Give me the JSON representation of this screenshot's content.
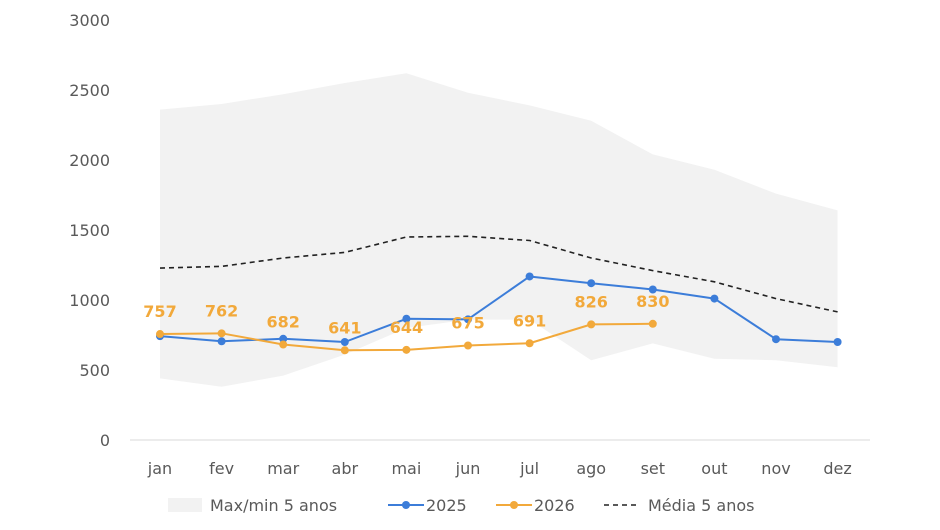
{
  "chart_data": {
    "type": "line",
    "categories": [
      "jan",
      "fev",
      "mar",
      "abr",
      "mai",
      "jun",
      "jul",
      "ago",
      "set",
      "out",
      "nov",
      "dez"
    ],
    "ylim": [
      0,
      3000
    ],
    "yticks": [
      0,
      500,
      1000,
      1500,
      2000,
      2500,
      3000
    ],
    "grid": false,
    "legend_position": "bottom",
    "band": {
      "name": "Max/min 5 anos",
      "color": "#f2f2f2",
      "max": [
        2360,
        2400,
        2470,
        2550,
        2620,
        2480,
        2390,
        2280,
        2040,
        1930,
        1760,
        1640
      ],
      "min": [
        440,
        380,
        460,
        610,
        800,
        860,
        860,
        570,
        690,
        580,
        570,
        520
      ]
    },
    "series": [
      {
        "name": "2025",
        "color": "#3c7dd9",
        "style": "solid-markers",
        "values": [
          742,
          705,
          723,
          700,
          866,
          862,
          1168,
          1120,
          1075,
          1010,
          720,
          700
        ]
      },
      {
        "name": "2026",
        "color": "#f2a93b",
        "style": "solid-markers",
        "values": [
          757,
          762,
          682,
          641,
          644,
          675,
          691,
          826,
          830,
          null,
          null,
          null
        ],
        "data_labels": [
          "757",
          "762",
          "682",
          "641",
          "644",
          "675",
          "691",
          "826",
          "830"
        ]
      },
      {
        "name": "Média 5 anos",
        "color": "#222222",
        "style": "dashed",
        "values": [
          1228,
          1240,
          1300,
          1340,
          1450,
          1455,
          1425,
          1300,
          1210,
          1130,
          1010,
          915
        ]
      }
    ]
  }
}
